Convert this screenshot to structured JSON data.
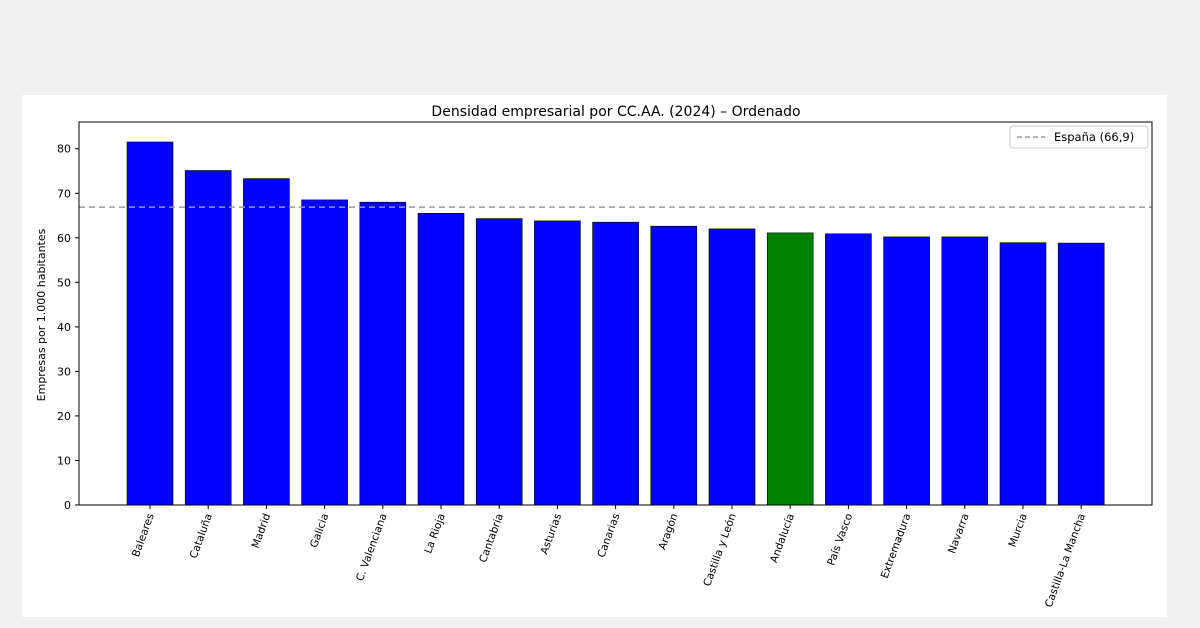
{
  "chart_data": {
    "type": "bar",
    "title": "Densidad empresarial por CC.AA. (2024) – Ordenado",
    "xlabel": "",
    "ylabel": "Empresas por 1.000 habitantes",
    "ylim": [
      0,
      86
    ],
    "yticks": [
      0,
      10,
      20,
      30,
      40,
      50,
      60,
      70,
      80
    ],
    "categories": [
      "Baleares",
      "Cataluña",
      "Madrid",
      "Galicia",
      "C. Valenciana",
      "La Rioja",
      "Cantabria",
      "Asturias",
      "Canarias",
      "Aragón",
      "Castilla y León",
      "Andalucía",
      "País Vasco",
      "Extremadura",
      "Navarra",
      "Murcia",
      "Castilla-La Mancha"
    ],
    "values": [
      81.5,
      75.1,
      73.3,
      68.5,
      68.0,
      65.5,
      64.3,
      63.8,
      63.5,
      62.6,
      62.0,
      61.1,
      60.9,
      60.2,
      60.2,
      58.9,
      58.8
    ],
    "bar_color": "#0000ff",
    "highlight_category": "Andalucía",
    "highlight_color": "#008000",
    "reference_line": {
      "label": "España (66,9)",
      "value": 66.9,
      "color": "#999999",
      "style": "dashed"
    },
    "legend_position": "top-right",
    "grid": false
  }
}
